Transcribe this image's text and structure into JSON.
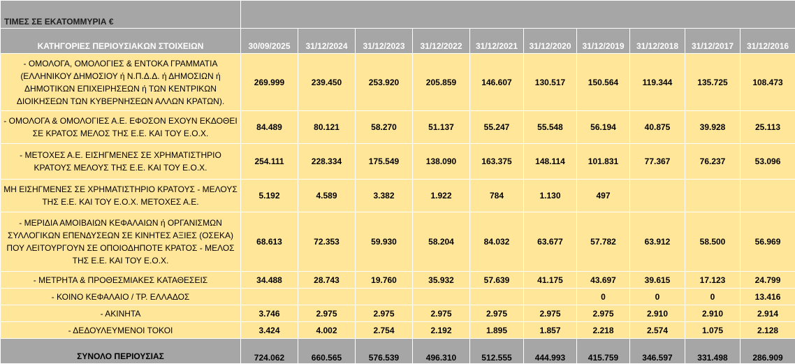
{
  "title": "ΤΙΜΕΣ ΣΕ ΕΚΑΤΟΜΜΥΡΙΑ €",
  "category_header": "ΚΑΤΗΓΟΡΙΕΣ ΠΕΡΙΟΥΣΙΑΚΩΝ ΣΤΟΙΧΕΙΩΝ",
  "dates": [
    "30/09/2025",
    "31/12/2024",
    "31/12/2023",
    "31/12/2022",
    "31/12/2021",
    "31/12/2020",
    "31/12/2019",
    "31/12/2018",
    "31/12/2017",
    "31/12/2016"
  ],
  "rows": [
    {
      "label": "- ΟΜΟΛΟΓΑ, ΟΜΟΛΟΓΙΕΣ & ΕΝΤΟΚΑ ΓΡΑΜΜΑΤΙΑ (ΕΛΛΗΝΙΚΟΥ ΔΗΜΟΣΙΟΥ ή Ν.Π.Δ.Δ. ή ΔΗΜΟΣΙΩΝ ή ΔΗΜΟΤΙΚΩΝ ΕΠΙΧΕΙΡΗΣΕΩΝ ή ΤΩΝ ΚΕΝΤΡΙΚΩΝ ΔΙΟΙΚΗΣΕΩΝ ΤΩΝ ΚΥΒΕΡΝΗΣΕΩΝ ΑΛΛΩΝ ΚΡΑΤΩΝ).",
      "values": [
        "269.999",
        "239.450",
        "253.920",
        "205.859",
        "146.607",
        "130.517",
        "150.564",
        "119.344",
        "135.725",
        "108.473"
      ]
    },
    {
      "label": "- ΟΜΟΛΟΓΑ & ΟΜΟΛΟΓΙΕΣ Α.Ε. ΕΦΟΣΟΝ ΕΧΟΥΝ ΕΚΔΟΘΕΙ ΣΕ ΚΡΑΤΟΣ ΜΕΛΟΣ ΤΗΣ Ε.Ε. ΚΑΙ ΤΟΥ Ε.Ο.Χ.",
      "values": [
        "84.489",
        "80.121",
        "58.270",
        "51.137",
        "55.247",
        "55.548",
        "56.194",
        "40.875",
        "39.928",
        "25.113"
      ]
    },
    {
      "label": "- ΜΕΤΟΧΕΣ Α.Ε. ΕΙΣΗΓΜΕΝΕΣ ΣΕ ΧΡΗΜΑΤΙΣΤΗΡΙΟ ΚΡΑΤΟΥΣ ΜΕΛΟΥΣ ΤΗΣ Ε.Ε. ΚΑΙ ΤΟΥ Ε.Ο.Χ.",
      "values": [
        "254.111",
        "228.334",
        "175.549",
        "138.090",
        "163.375",
        "148.114",
        "101.831",
        "77.367",
        "76.237",
        "53.096"
      ]
    },
    {
      "label": "ΜΗ ΕΙΣΗΓΜΕΝΕΣ ΣΕ ΧΡΗΜΑΤΙΣΤΗΡΙΟ ΚΡΑΤΟΥΣ - ΜΕΛΟΥΣ ΤΗΣ Ε.Ε. ΚΑΙ ΤΟΥ Ε.Ο.Χ. ΜΕΤΟΧΕΣ Α.Ε.",
      "values": [
        "5.192",
        "4.589",
        "3.382",
        "1.922",
        "784",
        "1.130",
        "497",
        "",
        "",
        ""
      ]
    },
    {
      "label": "- ΜΕΡΙΔΙΑ ΑΜΟΙΒΑΙΩΝ ΚΕΦΑΛΑΙΩΝ ή ΟΡΓΑΝΙΣΜΩΝ ΣΥΛΛΟΓΙΚΩΝ ΕΠΕΝΔΥΣΕΩΝ ΣΕ ΚΙΝΗΤΕΣ ΑΞΙΕΣ (ΟΣΕΚΑ) ΠΟΥ ΛΕΙΤΟΥΡΓΟΥΝ ΣΕ ΟΠΟΙΟΔΗΠΟΤΕ ΚΡΑΤΟΣ - ΜΕΛΟΣ ΤΗΣ Ε.Ε. ΚΑΙ ΤΟΥ Ε.Ο.Χ.",
      "values": [
        "68.613",
        "72.353",
        "59.930",
        "58.204",
        "84.032",
        "63.677",
        "57.782",
        "63.912",
        "58.500",
        "56.969"
      ]
    },
    {
      "label": "- ΜΕΤΡΗΤΑ & ΠΡΟΘΕΣΜΙΑΚΕΣ ΚΑΤΑΘΕΣΕΙΣ",
      "values": [
        "34.488",
        "28.743",
        "19.760",
        "35.932",
        "57.639",
        "41.175",
        "43.697",
        "39.615",
        "17.123",
        "24.799"
      ]
    },
    {
      "label": "- ΚΟΙΝΟ ΚΕΦΑΛΑΙΟ / ΤΡ. ΕΛΛΑΔΟΣ",
      "values": [
        "",
        "",
        "",
        "",
        "",
        "",
        "0",
        "0",
        "0",
        "13.416"
      ]
    },
    {
      "label": "- ΑΚΙΝΗΤΑ",
      "values": [
        "3.746",
        "2.975",
        "2.975",
        "2.975",
        "2.975",
        "2.975",
        "2.975",
        "2.910",
        "2.910",
        "2.914"
      ]
    },
    {
      "label": "- ΔΕΔΟΥΛΕΥΜΕΝΟΙ ΤΟΚΟΙ",
      "values": [
        "3.424",
        "4.002",
        "2.754",
        "2.192",
        "1.895",
        "1.857",
        "2.218",
        "2.574",
        "1.075",
        "2.128"
      ]
    }
  ],
  "total": {
    "label": "ΣΥΝΟΛΟ ΠΕΡΙΟΥΣΙΑΣ",
    "values": [
      "724.062",
      "660.565",
      "576.539",
      "496.310",
      "512.555",
      "444.993",
      "415.759",
      "346.597",
      "331.498",
      "286.909"
    ]
  }
}
